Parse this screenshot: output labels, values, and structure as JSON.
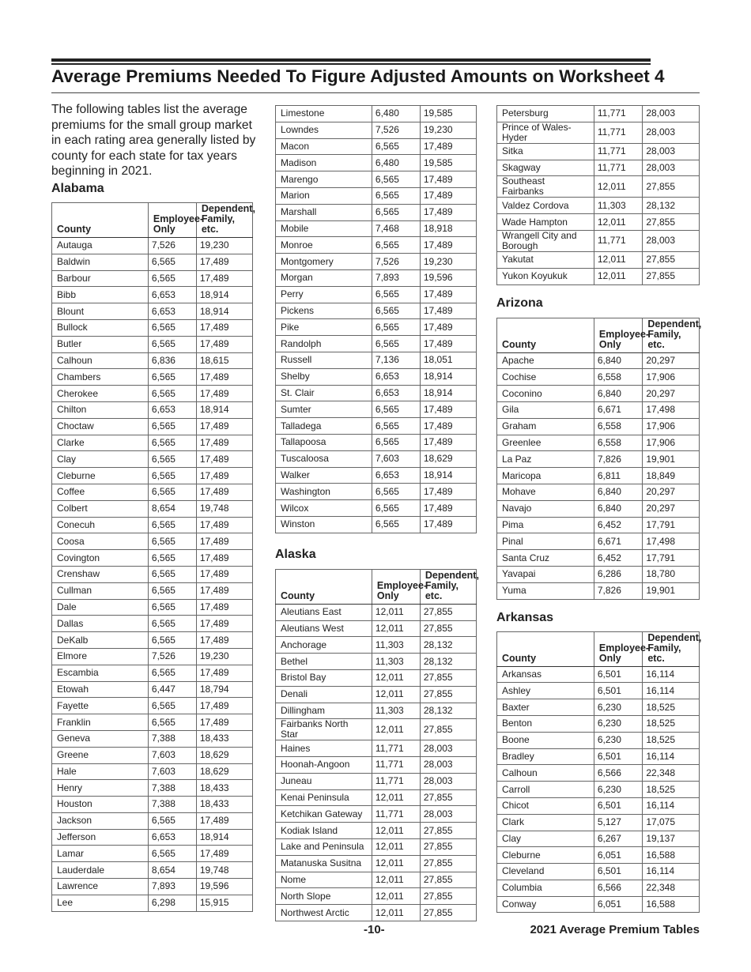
{
  "title": "Average Premiums Needed To Figure Adjusted Amounts on Worksheet 4",
  "intro": "The following tables list the average premiums for the small group market in each rating area generally listed by county for each state for tax years beginning in 2021.",
  "headers": {
    "county": "County",
    "employee": "Employee-Only",
    "employee_l1": "Employee-",
    "employee_l2": "Only",
    "dependent_l1": "Dependent,",
    "dependent_l2": "Family, etc."
  },
  "footer": {
    "page": "-10-",
    "label": "2021 Average Premium Tables"
  },
  "tables": [
    {
      "state": "Alabama",
      "part": 1,
      "rows": [
        [
          "Autauga",
          "7,526",
          "19,230"
        ],
        [
          "Baldwin",
          "6,565",
          "17,489"
        ],
        [
          "Barbour",
          "6,565",
          "17,489"
        ],
        [
          "Bibb",
          "6,653",
          "18,914"
        ],
        [
          "Blount",
          "6,653",
          "18,914"
        ],
        [
          "Bullock",
          "6,565",
          "17,489"
        ],
        [
          "Butler",
          "6,565",
          "17,489"
        ],
        [
          "Calhoun",
          "6,836",
          "18,615"
        ],
        [
          "Chambers",
          "6,565",
          "17,489"
        ],
        [
          "Cherokee",
          "6,565",
          "17,489"
        ],
        [
          "Chilton",
          "6,653",
          "18,914"
        ],
        [
          "Choctaw",
          "6,565",
          "17,489"
        ],
        [
          "Clarke",
          "6,565",
          "17,489"
        ],
        [
          "Clay",
          "6,565",
          "17,489"
        ],
        [
          "Cleburne",
          "6,565",
          "17,489"
        ],
        [
          "Coffee",
          "6,565",
          "17,489"
        ],
        [
          "Colbert",
          "8,654",
          "19,748"
        ],
        [
          "Conecuh",
          "6,565",
          "17,489"
        ],
        [
          "Coosa",
          "6,565",
          "17,489"
        ],
        [
          "Covington",
          "6,565",
          "17,489"
        ],
        [
          "Crenshaw",
          "6,565",
          "17,489"
        ],
        [
          "Cullman",
          "6,565",
          "17,489"
        ],
        [
          "Dale",
          "6,565",
          "17,489"
        ],
        [
          "Dallas",
          "6,565",
          "17,489"
        ],
        [
          "DeKalb",
          "6,565",
          "17,489"
        ],
        [
          "Elmore",
          "7,526",
          "19,230"
        ],
        [
          "Escambia",
          "6,565",
          "17,489"
        ],
        [
          "Etowah",
          "6,447",
          "18,794"
        ],
        [
          "Fayette",
          "6,565",
          "17,489"
        ],
        [
          "Franklin",
          "6,565",
          "17,489"
        ],
        [
          "Geneva",
          "7,388",
          "18,433"
        ],
        [
          "Greene",
          "7,603",
          "18,629"
        ],
        [
          "Hale",
          "7,603",
          "18,629"
        ],
        [
          "Henry",
          "7,388",
          "18,433"
        ],
        [
          "Houston",
          "7,388",
          "18,433"
        ],
        [
          "Jackson",
          "6,565",
          "17,489"
        ],
        [
          "Jefferson",
          "6,653",
          "18,914"
        ],
        [
          "Lamar",
          "6,565",
          "17,489"
        ],
        [
          "Lauderdale",
          "8,654",
          "19,748"
        ],
        [
          "Lawrence",
          "7,893",
          "19,596"
        ],
        [
          "Lee",
          "6,298",
          "15,915"
        ]
      ]
    },
    {
      "state": "Alabama",
      "part": 2,
      "rows": [
        [
          "Limestone",
          "6,480",
          "19,585"
        ],
        [
          "Lowndes",
          "7,526",
          "19,230"
        ],
        [
          "Macon",
          "6,565",
          "17,489"
        ],
        [
          "Madison",
          "6,480",
          "19,585"
        ],
        [
          "Marengo",
          "6,565",
          "17,489"
        ],
        [
          "Marion",
          "6,565",
          "17,489"
        ],
        [
          "Marshall",
          "6,565",
          "17,489"
        ],
        [
          "Mobile",
          "7,468",
          "18,918"
        ],
        [
          "Monroe",
          "6,565",
          "17,489"
        ],
        [
          "Montgomery",
          "7,526",
          "19,230"
        ],
        [
          "Morgan",
          "7,893",
          "19,596"
        ],
        [
          "Perry",
          "6,565",
          "17,489"
        ],
        [
          "Pickens",
          "6,565",
          "17,489"
        ],
        [
          "Pike",
          "6,565",
          "17,489"
        ],
        [
          "Randolph",
          "6,565",
          "17,489"
        ],
        [
          "Russell",
          "7,136",
          "18,051"
        ],
        [
          "Shelby",
          "6,653",
          "18,914"
        ],
        [
          "St. Clair",
          "6,653",
          "18,914"
        ],
        [
          "Sumter",
          "6,565",
          "17,489"
        ],
        [
          "Talladega",
          "6,565",
          "17,489"
        ],
        [
          "Tallapoosa",
          "6,565",
          "17,489"
        ],
        [
          "Tuscaloosa",
          "7,603",
          "18,629"
        ],
        [
          "Walker",
          "6,653",
          "18,914"
        ],
        [
          "Washington",
          "6,565",
          "17,489"
        ],
        [
          "Wilcox",
          "6,565",
          "17,489"
        ],
        [
          "Winston",
          "6,565",
          "17,489"
        ]
      ]
    },
    {
      "state": "Alaska",
      "part": 1,
      "rows": [
        [
          "Aleutians East",
          "12,011",
          "27,855"
        ],
        [
          "Aleutians West",
          "12,011",
          "27,855"
        ],
        [
          "Anchorage",
          "11,303",
          "28,132"
        ],
        [
          "Bethel",
          "11,303",
          "28,132"
        ],
        [
          "Bristol Bay",
          "12,011",
          "27,855"
        ],
        [
          "Denali",
          "12,011",
          "27,855"
        ],
        [
          "Dillingham",
          "11,303",
          "28,132"
        ],
        [
          "Fairbanks North Star",
          "12,011",
          "27,855"
        ],
        [
          "Haines",
          "11,771",
          "28,003"
        ],
        [
          "Hoonah-Angoon",
          "11,771",
          "28,003"
        ],
        [
          "Juneau",
          "11,771",
          "28,003"
        ],
        [
          "Kenai Peninsula",
          "12,011",
          "27,855"
        ],
        [
          "Ketchikan Gateway",
          "11,771",
          "28,003"
        ],
        [
          "Kodiak Island",
          "12,011",
          "27,855"
        ],
        [
          "Lake and Peninsula",
          "12,011",
          "27,855"
        ],
        [
          "Matanuska Susitna",
          "12,011",
          "27,855"
        ],
        [
          "Nome",
          "12,011",
          "27,855"
        ],
        [
          "North Slope",
          "12,011",
          "27,855"
        ],
        [
          "Northwest Arctic",
          "12,011",
          "27,855"
        ]
      ]
    },
    {
      "state": "Alaska",
      "part": 2,
      "rows": [
        [
          "Petersburg",
          "11,771",
          "28,003"
        ],
        [
          "Prince of Wales-Hyder",
          "11,771",
          "28,003"
        ],
        [
          "Sitka",
          "11,771",
          "28,003"
        ],
        [
          "Skagway",
          "11,771",
          "28,003"
        ],
        [
          "Southeast Fairbanks",
          "12,011",
          "27,855"
        ],
        [
          "Valdez Cordova",
          "11,303",
          "28,132"
        ],
        [
          "Wade Hampton",
          "12,011",
          "27,855"
        ],
        [
          "Wrangell City and Borough",
          "11,771",
          "28,003"
        ],
        [
          "Yakutat",
          "12,011",
          "27,855"
        ],
        [
          "Yukon Koyukuk",
          "12,011",
          "27,855"
        ]
      ]
    },
    {
      "state": "Arizona",
      "part": 1,
      "rows": [
        [
          "Apache",
          "6,840",
          "20,297"
        ],
        [
          "Cochise",
          "6,558",
          "17,906"
        ],
        [
          "Coconino",
          "6,840",
          "20,297"
        ],
        [
          "Gila",
          "6,671",
          "17,498"
        ],
        [
          "Graham",
          "6,558",
          "17,906"
        ],
        [
          "Greenlee",
          "6,558",
          "17,906"
        ],
        [
          "La Paz",
          "7,826",
          "19,901"
        ],
        [
          "Maricopa",
          "6,811",
          "18,849"
        ],
        [
          "Mohave",
          "6,840",
          "20,297"
        ],
        [
          "Navajo",
          "6,840",
          "20,297"
        ],
        [
          "Pima",
          "6,452",
          "17,791"
        ],
        [
          "Pinal",
          "6,671",
          "17,498"
        ],
        [
          "Santa Cruz",
          "6,452",
          "17,791"
        ],
        [
          "Yavapai",
          "6,286",
          "18,780"
        ],
        [
          "Yuma",
          "7,826",
          "19,901"
        ]
      ]
    },
    {
      "state": "Arkansas",
      "part": 1,
      "rows": [
        [
          "Arkansas",
          "6,501",
          "16,114"
        ],
        [
          "Ashley",
          "6,501",
          "16,114"
        ],
        [
          "Baxter",
          "6,230",
          "18,525"
        ],
        [
          "Benton",
          "6,230",
          "18,525"
        ],
        [
          "Boone",
          "6,230",
          "18,525"
        ],
        [
          "Bradley",
          "6,501",
          "16,114"
        ],
        [
          "Calhoun",
          "6,566",
          "22,348"
        ],
        [
          "Carroll",
          "6,230",
          "18,525"
        ],
        [
          "Chicot",
          "6,501",
          "16,114"
        ],
        [
          "Clark",
          "5,127",
          "17,075"
        ],
        [
          "Clay",
          "6,267",
          "19,137"
        ],
        [
          "Cleburne",
          "6,051",
          "16,588"
        ],
        [
          "Cleveland",
          "6,501",
          "16,114"
        ],
        [
          "Columbia",
          "6,566",
          "22,348"
        ],
        [
          "Conway",
          "6,051",
          "16,588"
        ]
      ]
    }
  ]
}
